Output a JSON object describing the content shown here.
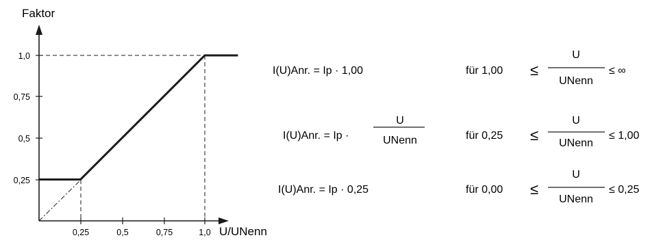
{
  "chart_data": {
    "type": "line",
    "ylabel": "Faktor",
    "xlabel": "U/UNenn",
    "xlim": [
      0,
      1.2
    ],
    "ylim": [
      0,
      1.15
    ],
    "xticks": [
      "0,25",
      "0,5",
      "0,75",
      "1,0"
    ],
    "yticks": [
      "0,25",
      "0,5",
      "0,75",
      "1,0"
    ],
    "series": [
      {
        "x": [
          0,
          0.25,
          1.0,
          1.2
        ],
        "y": [
          0.25,
          0.25,
          1.0,
          1.0
        ]
      }
    ]
  },
  "equations": [
    {
      "lhs": "I(U)Anr. = Ip · 1,00",
      "cond_prefix": "für 1,00",
      "frac_num": "U",
      "frac_den": "UNenn",
      "cond_suffix": "≤ ∞"
    },
    {
      "lhs_prefix": "I(U)Anr. = Ip ·",
      "lhs_num": "U",
      "lhs_den": "UNenn",
      "cond_prefix": "für 0,25",
      "frac_num": "U",
      "frac_den": "UNenn",
      "cond_suffix": "≤ 1,00"
    },
    {
      "lhs": "I(U)Anr. = Ip · 0,25",
      "cond_prefix": "für 0,00",
      "frac_num": "U",
      "frac_den": "UNenn",
      "cond_suffix": "≤ 0,25"
    }
  ],
  "leq_symbol": "≤"
}
